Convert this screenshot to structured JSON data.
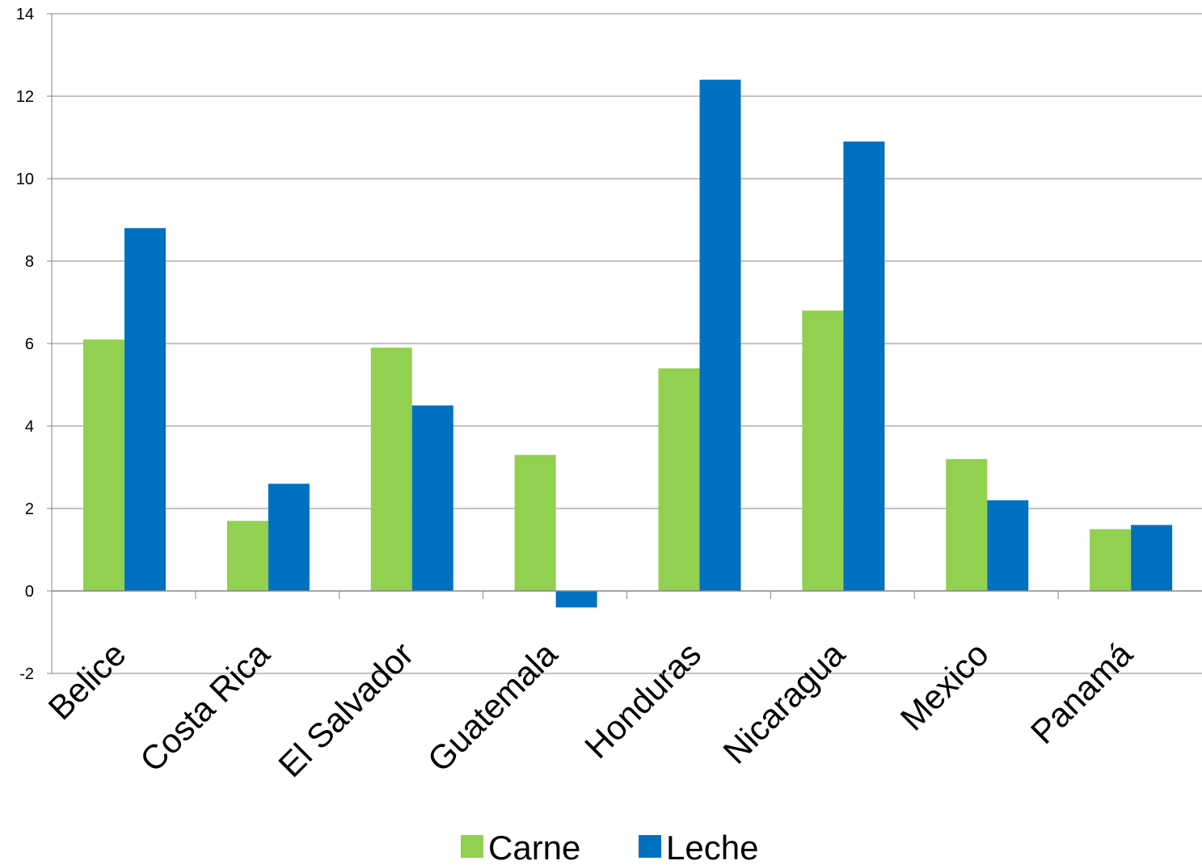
{
  "chart_data": {
    "type": "bar",
    "categories": [
      "Belice",
      "Costa Rica",
      "El Salvador",
      "Guatemala",
      "Honduras",
      "Nicaragua",
      "Mexico",
      "Panamá"
    ],
    "series": [
      {
        "name": "Carne",
        "color": "#92D050",
        "values": [
          6.1,
          1.7,
          5.9,
          3.3,
          5.4,
          6.8,
          3.2,
          1.5
        ]
      },
      {
        "name": "Leche",
        "color": "#0070C0",
        "values": [
          8.8,
          2.6,
          4.5,
          -0.4,
          12.4,
          10.9,
          2.2,
          1.6
        ]
      }
    ],
    "ylim": [
      -2,
      14
    ],
    "yticks": [
      "-2",
      "0",
      "2",
      "4",
      "6",
      "8",
      "10",
      "12",
      "14"
    ],
    "grid": true,
    "legend_position": "bottom"
  }
}
